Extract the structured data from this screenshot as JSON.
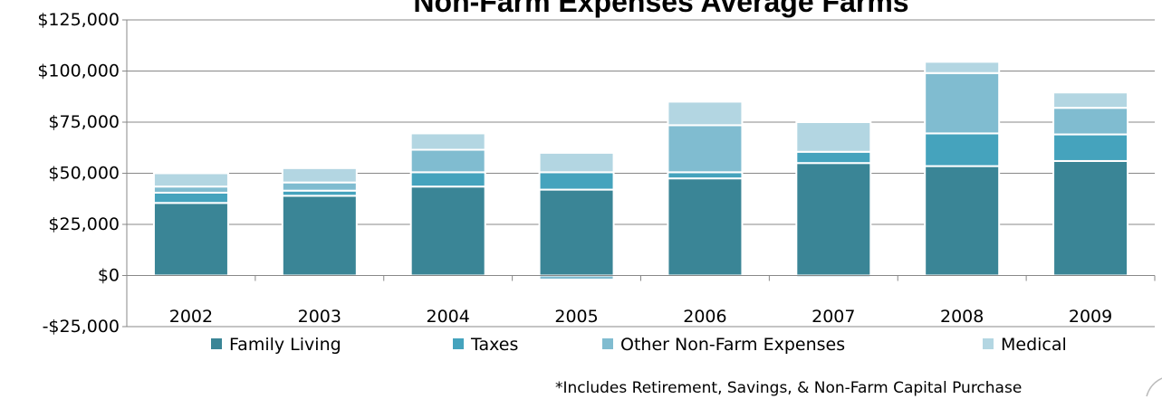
{
  "chart_data": {
    "type": "bar",
    "stacked": true,
    "title": "Non-Farm Expenses Average Farms",
    "xlabel": "",
    "ylabel": "",
    "ylim": [
      -25000,
      125000
    ],
    "yticks": [
      -25000,
      0,
      25000,
      50000,
      75000,
      100000,
      125000
    ],
    "ytick_labels": [
      "-$25,000",
      "$0",
      "$25,000",
      "$50,000",
      "$75,000",
      "$100,000",
      "$125,000"
    ],
    "grid": true,
    "legend_position": "bottom",
    "categories": [
      "2002",
      "2003",
      "2004",
      "2005",
      "2006",
      "2007",
      "2008",
      "2009"
    ],
    "series": [
      {
        "name": "Family Living",
        "color": "#3a8596",
        "values": [
          35500,
          39000,
          43500,
          42000,
          47500,
          55000,
          53500,
          56000
        ]
      },
      {
        "name": "Taxes",
        "color": "#45a3bd",
        "values": [
          5000,
          2500,
          7000,
          8500,
          3000,
          5500,
          16000,
          13000
        ]
      },
      {
        "name": "Other Non-Farm Expenses",
        "color": "#80bcd0",
        "values": [
          3000,
          4000,
          11000,
          -2000,
          23000,
          -1000,
          29500,
          13000
        ]
      },
      {
        "name": "Medical",
        "color": "#b3d6e2",
        "values": [
          6500,
          7000,
          8000,
          9500,
          11500,
          14500,
          5500,
          7500
        ]
      }
    ],
    "footnote": "*Includes Retirement, Savings, & Non-Farm Capital Purchase"
  }
}
